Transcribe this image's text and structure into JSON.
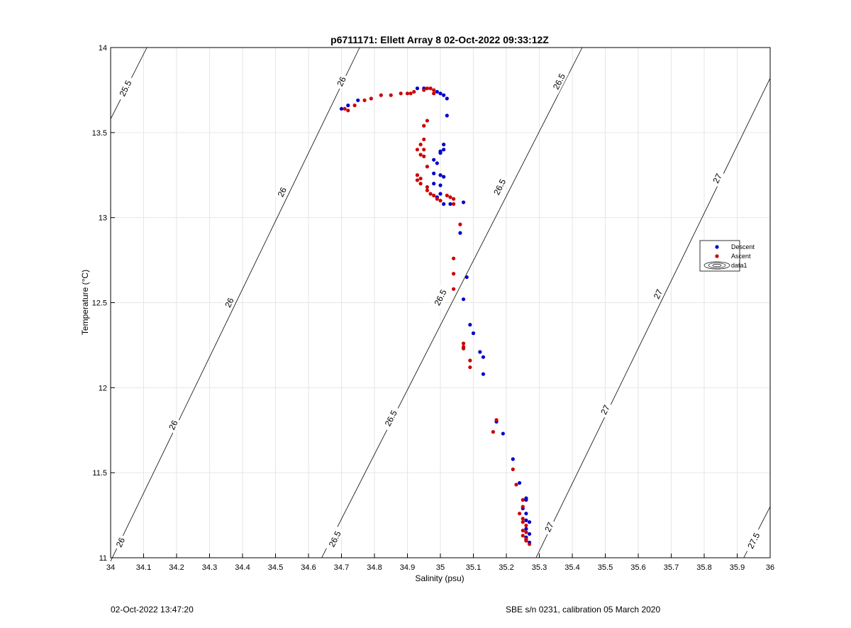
{
  "chart_data": {
    "type": "scatter",
    "title": "p6711171: Ellett Array 8 02-Oct-2022 09:33:12Z",
    "xlabel": "Salinity (psu)",
    "ylabel": "Temperature (°C)",
    "xlim": [
      34,
      36
    ],
    "ylim": [
      11,
      14
    ],
    "xticks": [
      "34",
      "34.1",
      "34.2",
      "34.3",
      "34.4",
      "34.5",
      "34.6",
      "34.7",
      "34.8",
      "34.9",
      "35",
      "35.1",
      "35.2",
      "35.3",
      "35.4",
      "35.5",
      "35.6",
      "35.7",
      "35.8",
      "35.9",
      "36"
    ],
    "yticks": [
      "11",
      "11.5",
      "12",
      "12.5",
      "13",
      "13.5",
      "14"
    ],
    "grid": true,
    "legend": {
      "position": "right",
      "entries": [
        "Descent",
        "Ascent",
        "data1"
      ]
    },
    "contours": [
      {
        "level": "25.5",
        "points": [
          [
            34.0,
            13.58
          ],
          [
            34.11,
            14.0
          ]
        ],
        "labels": [
          [
            34.045,
            13.76
          ]
        ]
      },
      {
        "level": "26",
        "points": [
          [
            34.0,
            10.98
          ],
          [
            34.755,
            14.0
          ]
        ],
        "labels": [
          [
            34.03,
            11.09
          ],
          [
            34.19,
            11.78
          ],
          [
            34.36,
            12.5
          ],
          [
            34.52,
            13.15
          ],
          [
            34.7,
            13.8
          ]
        ]
      },
      {
        "level": "26.5",
        "points": [
          [
            34.64,
            11.0
          ],
          [
            35.43,
            14.0
          ]
        ],
        "labels": [
          [
            34.68,
            11.11
          ],
          [
            34.85,
            11.82
          ],
          [
            35.0,
            12.53
          ],
          [
            35.18,
            13.18
          ],
          [
            35.36,
            13.8
          ]
        ]
      },
      {
        "level": "27",
        "points": [
          [
            35.29,
            11.0
          ],
          [
            36.0,
            13.82
          ]
        ],
        "labels": [
          [
            35.33,
            11.18
          ],
          [
            35.5,
            11.87
          ],
          [
            35.66,
            12.55
          ],
          [
            35.84,
            13.23
          ]
        ]
      },
      {
        "level": "27.5",
        "points": [
          [
            35.92,
            11.0
          ],
          [
            36.0,
            11.3
          ]
        ],
        "labels": [
          [
            35.95,
            11.1
          ]
        ]
      }
    ],
    "series": [
      {
        "name": "Descent",
        "color": "#0000cc",
        "points": [
          [
            34.7,
            13.64
          ],
          [
            34.72,
            13.66
          ],
          [
            34.75,
            13.69
          ],
          [
            34.93,
            13.76
          ],
          [
            34.95,
            13.76
          ],
          [
            34.99,
            13.74
          ],
          [
            35.0,
            13.73
          ],
          [
            35.01,
            13.72
          ],
          [
            35.02,
            13.7
          ],
          [
            35.02,
            13.6
          ],
          [
            35.01,
            13.43
          ],
          [
            35.01,
            13.4
          ],
          [
            35.0,
            13.39
          ],
          [
            35.0,
            13.38
          ],
          [
            34.98,
            13.34
          ],
          [
            34.99,
            13.32
          ],
          [
            34.98,
            13.26
          ],
          [
            35.0,
            13.25
          ],
          [
            35.01,
            13.24
          ],
          [
            34.98,
            13.2
          ],
          [
            35.0,
            13.19
          ],
          [
            35.0,
            13.14
          ],
          [
            34.99,
            13.12
          ],
          [
            35.01,
            13.08
          ],
          [
            35.03,
            13.08
          ],
          [
            35.07,
            13.09
          ],
          [
            35.06,
            12.91
          ],
          [
            35.08,
            12.65
          ],
          [
            35.07,
            12.52
          ],
          [
            35.09,
            12.37
          ],
          [
            35.1,
            12.32
          ],
          [
            35.12,
            12.21
          ],
          [
            35.13,
            12.18
          ],
          [
            35.13,
            12.08
          ],
          [
            35.17,
            11.8
          ],
          [
            35.19,
            11.73
          ],
          [
            35.22,
            11.58
          ],
          [
            35.24,
            11.44
          ],
          [
            35.26,
            11.35
          ],
          [
            35.26,
            11.34
          ],
          [
            35.25,
            11.29
          ],
          [
            35.26,
            11.26
          ],
          [
            35.26,
            11.22
          ],
          [
            35.27,
            11.21
          ],
          [
            35.26,
            11.17
          ],
          [
            35.27,
            11.14
          ],
          [
            35.26,
            11.12
          ],
          [
            35.27,
            11.09
          ]
        ]
      },
      {
        "name": "Ascent",
        "color": "#cc0000",
        "points": [
          [
            34.71,
            13.64
          ],
          [
            34.72,
            13.63
          ],
          [
            34.74,
            13.66
          ],
          [
            34.77,
            13.69
          ],
          [
            34.79,
            13.7
          ],
          [
            34.82,
            13.72
          ],
          [
            34.85,
            13.72
          ],
          [
            34.88,
            13.73
          ],
          [
            34.9,
            13.73
          ],
          [
            34.91,
            13.73
          ],
          [
            34.92,
            13.74
          ],
          [
            34.95,
            13.75
          ],
          [
            34.96,
            13.76
          ],
          [
            34.97,
            13.76
          ],
          [
            34.98,
            13.75
          ],
          [
            34.98,
            13.73
          ],
          [
            34.96,
            13.57
          ],
          [
            34.95,
            13.54
          ],
          [
            34.95,
            13.46
          ],
          [
            34.94,
            13.43
          ],
          [
            34.95,
            13.4
          ],
          [
            34.93,
            13.4
          ],
          [
            34.94,
            13.37
          ],
          [
            34.95,
            13.36
          ],
          [
            34.96,
            13.3
          ],
          [
            34.93,
            13.25
          ],
          [
            34.94,
            13.23
          ],
          [
            34.93,
            13.22
          ],
          [
            34.94,
            13.2
          ],
          [
            34.96,
            13.18
          ],
          [
            34.96,
            13.16
          ],
          [
            34.97,
            13.14
          ],
          [
            34.98,
            13.13
          ],
          [
            34.99,
            13.11
          ],
          [
            35.0,
            13.1
          ],
          [
            35.02,
            13.13
          ],
          [
            35.03,
            13.12
          ],
          [
            35.04,
            13.11
          ],
          [
            35.04,
            13.08
          ],
          [
            35.06,
            12.96
          ],
          [
            35.04,
            12.76
          ],
          [
            35.04,
            12.67
          ],
          [
            35.04,
            12.58
          ],
          [
            35.07,
            12.26
          ],
          [
            35.07,
            12.24
          ],
          [
            35.07,
            12.23
          ],
          [
            35.09,
            12.16
          ],
          [
            35.09,
            12.12
          ],
          [
            35.17,
            11.81
          ],
          [
            35.16,
            11.74
          ],
          [
            35.22,
            11.52
          ],
          [
            35.23,
            11.43
          ],
          [
            35.25,
            11.34
          ],
          [
            35.25,
            11.3
          ],
          [
            35.24,
            11.26
          ],
          [
            35.25,
            11.23
          ],
          [
            35.25,
            11.21
          ],
          [
            35.26,
            11.19
          ],
          [
            35.25,
            11.16
          ],
          [
            35.26,
            11.15
          ],
          [
            35.25,
            11.13
          ],
          [
            35.26,
            11.11
          ],
          [
            35.26,
            11.1
          ],
          [
            35.27,
            11.08
          ]
        ]
      }
    ]
  },
  "footer": {
    "date": "02-Oct-2022 13:47:20",
    "calibration": "SBE s/n 0231, calibration 05 March 2020"
  }
}
